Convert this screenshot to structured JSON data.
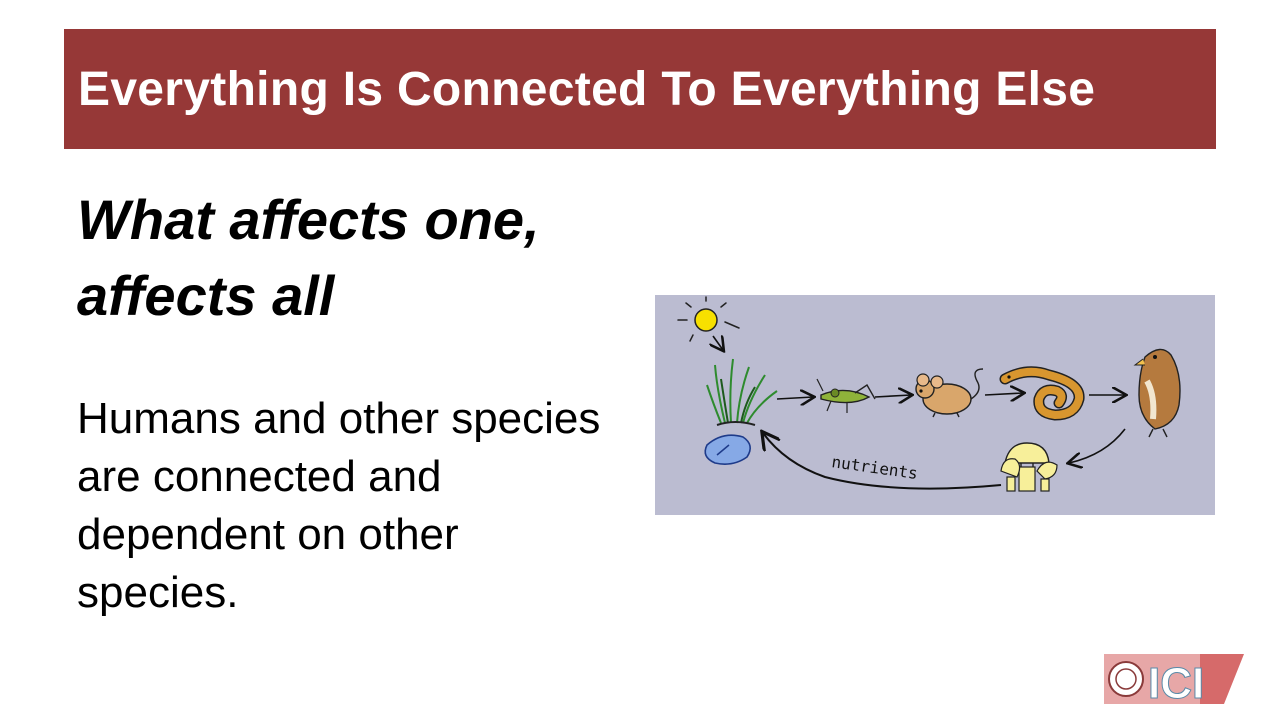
{
  "slide": {
    "title": "Everything Is Connected To Everything Else",
    "subheading": "What affects one, affects all",
    "body": "Humans and other species are connected and dependent on other species."
  },
  "illustration": {
    "label": "nutrients"
  },
  "logo": {
    "text": "ICI"
  },
  "colors": {
    "title_bar": "#963837",
    "illustration_bg": "#bbbcd1"
  }
}
